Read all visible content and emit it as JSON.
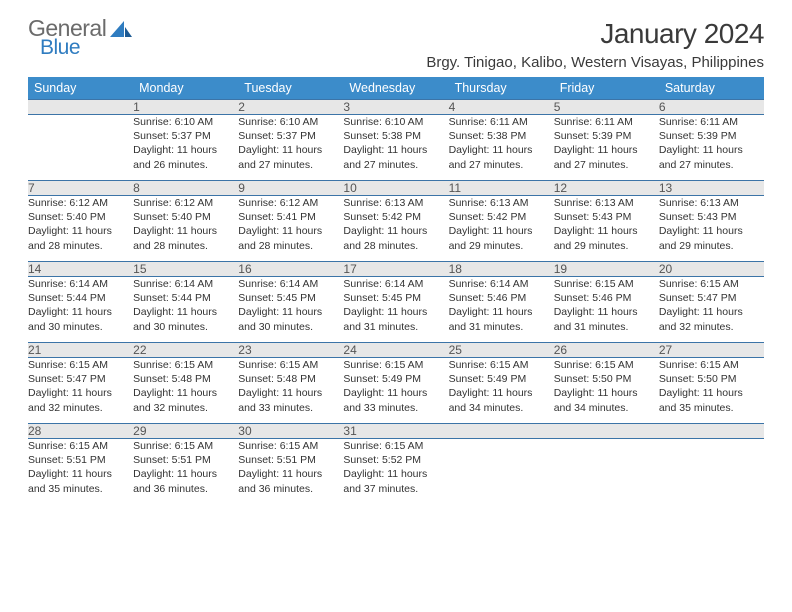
{
  "logo": {
    "word1": "General",
    "word2": "Blue",
    "word1_color": "#6b6b6b",
    "word2_color": "#2f7cc0"
  },
  "title": "January 2024",
  "location": "Brgy. Tinigao, Kalibo, Western Visayas, Philippines",
  "colors": {
    "header_bg": "#3c8cca",
    "header_text": "#ffffff",
    "daynum_bg": "#e7e7e7",
    "daynum_text": "#555555",
    "rule": "#3c74a7",
    "body_text": "#333333",
    "page_bg": "#ffffff"
  },
  "typography": {
    "title_fontsize": 28,
    "location_fontsize": 15,
    "header_fontsize": 12.5,
    "daynum_fontsize": 12,
    "cell_fontsize": 10.5
  },
  "day_headers": [
    "Sunday",
    "Monday",
    "Tuesday",
    "Wednesday",
    "Thursday",
    "Friday",
    "Saturday"
  ],
  "weeks": [
    {
      "nums": [
        "",
        "1",
        "2",
        "3",
        "4",
        "5",
        "6"
      ],
      "cells": [
        null,
        {
          "sunrise": "Sunrise: 6:10 AM",
          "sunset": "Sunset: 5:37 PM",
          "day1": "Daylight: 11 hours",
          "day2": "and 26 minutes."
        },
        {
          "sunrise": "Sunrise: 6:10 AM",
          "sunset": "Sunset: 5:37 PM",
          "day1": "Daylight: 11 hours",
          "day2": "and 27 minutes."
        },
        {
          "sunrise": "Sunrise: 6:10 AM",
          "sunset": "Sunset: 5:38 PM",
          "day1": "Daylight: 11 hours",
          "day2": "and 27 minutes."
        },
        {
          "sunrise": "Sunrise: 6:11 AM",
          "sunset": "Sunset: 5:38 PM",
          "day1": "Daylight: 11 hours",
          "day2": "and 27 minutes."
        },
        {
          "sunrise": "Sunrise: 6:11 AM",
          "sunset": "Sunset: 5:39 PM",
          "day1": "Daylight: 11 hours",
          "day2": "and 27 minutes."
        },
        {
          "sunrise": "Sunrise: 6:11 AM",
          "sunset": "Sunset: 5:39 PM",
          "day1": "Daylight: 11 hours",
          "day2": "and 27 minutes."
        }
      ]
    },
    {
      "nums": [
        "7",
        "8",
        "9",
        "10",
        "11",
        "12",
        "13"
      ],
      "cells": [
        {
          "sunrise": "Sunrise: 6:12 AM",
          "sunset": "Sunset: 5:40 PM",
          "day1": "Daylight: 11 hours",
          "day2": "and 28 minutes."
        },
        {
          "sunrise": "Sunrise: 6:12 AM",
          "sunset": "Sunset: 5:40 PM",
          "day1": "Daylight: 11 hours",
          "day2": "and 28 minutes."
        },
        {
          "sunrise": "Sunrise: 6:12 AM",
          "sunset": "Sunset: 5:41 PM",
          "day1": "Daylight: 11 hours",
          "day2": "and 28 minutes."
        },
        {
          "sunrise": "Sunrise: 6:13 AM",
          "sunset": "Sunset: 5:42 PM",
          "day1": "Daylight: 11 hours",
          "day2": "and 28 minutes."
        },
        {
          "sunrise": "Sunrise: 6:13 AM",
          "sunset": "Sunset: 5:42 PM",
          "day1": "Daylight: 11 hours",
          "day2": "and 29 minutes."
        },
        {
          "sunrise": "Sunrise: 6:13 AM",
          "sunset": "Sunset: 5:43 PM",
          "day1": "Daylight: 11 hours",
          "day2": "and 29 minutes."
        },
        {
          "sunrise": "Sunrise: 6:13 AM",
          "sunset": "Sunset: 5:43 PM",
          "day1": "Daylight: 11 hours",
          "day2": "and 29 minutes."
        }
      ]
    },
    {
      "nums": [
        "14",
        "15",
        "16",
        "17",
        "18",
        "19",
        "20"
      ],
      "cells": [
        {
          "sunrise": "Sunrise: 6:14 AM",
          "sunset": "Sunset: 5:44 PM",
          "day1": "Daylight: 11 hours",
          "day2": "and 30 minutes."
        },
        {
          "sunrise": "Sunrise: 6:14 AM",
          "sunset": "Sunset: 5:44 PM",
          "day1": "Daylight: 11 hours",
          "day2": "and 30 minutes."
        },
        {
          "sunrise": "Sunrise: 6:14 AM",
          "sunset": "Sunset: 5:45 PM",
          "day1": "Daylight: 11 hours",
          "day2": "and 30 minutes."
        },
        {
          "sunrise": "Sunrise: 6:14 AM",
          "sunset": "Sunset: 5:45 PM",
          "day1": "Daylight: 11 hours",
          "day2": "and 31 minutes."
        },
        {
          "sunrise": "Sunrise: 6:14 AM",
          "sunset": "Sunset: 5:46 PM",
          "day1": "Daylight: 11 hours",
          "day2": "and 31 minutes."
        },
        {
          "sunrise": "Sunrise: 6:15 AM",
          "sunset": "Sunset: 5:46 PM",
          "day1": "Daylight: 11 hours",
          "day2": "and 31 minutes."
        },
        {
          "sunrise": "Sunrise: 6:15 AM",
          "sunset": "Sunset: 5:47 PM",
          "day1": "Daylight: 11 hours",
          "day2": "and 32 minutes."
        }
      ]
    },
    {
      "nums": [
        "21",
        "22",
        "23",
        "24",
        "25",
        "26",
        "27"
      ],
      "cells": [
        {
          "sunrise": "Sunrise: 6:15 AM",
          "sunset": "Sunset: 5:47 PM",
          "day1": "Daylight: 11 hours",
          "day2": "and 32 minutes."
        },
        {
          "sunrise": "Sunrise: 6:15 AM",
          "sunset": "Sunset: 5:48 PM",
          "day1": "Daylight: 11 hours",
          "day2": "and 32 minutes."
        },
        {
          "sunrise": "Sunrise: 6:15 AM",
          "sunset": "Sunset: 5:48 PM",
          "day1": "Daylight: 11 hours",
          "day2": "and 33 minutes."
        },
        {
          "sunrise": "Sunrise: 6:15 AM",
          "sunset": "Sunset: 5:49 PM",
          "day1": "Daylight: 11 hours",
          "day2": "and 33 minutes."
        },
        {
          "sunrise": "Sunrise: 6:15 AM",
          "sunset": "Sunset: 5:49 PM",
          "day1": "Daylight: 11 hours",
          "day2": "and 34 minutes."
        },
        {
          "sunrise": "Sunrise: 6:15 AM",
          "sunset": "Sunset: 5:50 PM",
          "day1": "Daylight: 11 hours",
          "day2": "and 34 minutes."
        },
        {
          "sunrise": "Sunrise: 6:15 AM",
          "sunset": "Sunset: 5:50 PM",
          "day1": "Daylight: 11 hours",
          "day2": "and 35 minutes."
        }
      ]
    },
    {
      "nums": [
        "28",
        "29",
        "30",
        "31",
        "",
        "",
        ""
      ],
      "cells": [
        {
          "sunrise": "Sunrise: 6:15 AM",
          "sunset": "Sunset: 5:51 PM",
          "day1": "Daylight: 11 hours",
          "day2": "and 35 minutes."
        },
        {
          "sunrise": "Sunrise: 6:15 AM",
          "sunset": "Sunset: 5:51 PM",
          "day1": "Daylight: 11 hours",
          "day2": "and 36 minutes."
        },
        {
          "sunrise": "Sunrise: 6:15 AM",
          "sunset": "Sunset: 5:51 PM",
          "day1": "Daylight: 11 hours",
          "day2": "and 36 minutes."
        },
        {
          "sunrise": "Sunrise: 6:15 AM",
          "sunset": "Sunset: 5:52 PM",
          "day1": "Daylight: 11 hours",
          "day2": "and 37 minutes."
        },
        null,
        null,
        null
      ]
    }
  ]
}
